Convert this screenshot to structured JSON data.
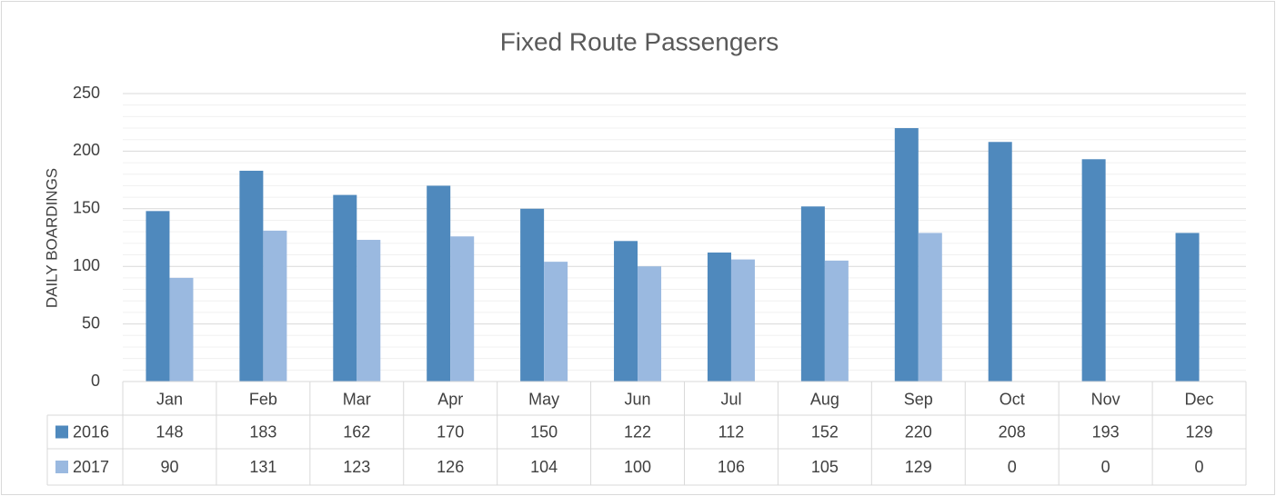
{
  "chart_data": {
    "type": "bar",
    "title": "Fixed Route Passengers",
    "y_label": "DAILY BOARDINGS",
    "categories": [
      "Jan",
      "Feb",
      "Mar",
      "Apr",
      "May",
      "Jun",
      "Jul",
      "Aug",
      "Sep",
      "Oct",
      "Nov",
      "Dec"
    ],
    "series": [
      {
        "name": "2016",
        "color": "#4f89bd",
        "values": [
          148,
          183,
          162,
          170,
          150,
          122,
          112,
          152,
          220,
          208,
          193,
          129
        ]
      },
      {
        "name": "2017",
        "color": "#9ab9e0",
        "values": [
          90,
          131,
          123,
          126,
          104,
          100,
          106,
          105,
          129,
          0,
          0,
          0
        ]
      }
    ],
    "ylim": [
      0,
      250
    ],
    "yticks": [
      0,
      50,
      100,
      150,
      200,
      250
    ],
    "yminorticks": [
      10,
      20,
      30,
      40,
      60,
      70,
      80,
      90,
      110,
      120,
      130,
      140,
      160,
      170,
      180,
      190,
      210,
      220,
      230,
      240
    ],
    "grid": true,
    "data_table": true
  }
}
